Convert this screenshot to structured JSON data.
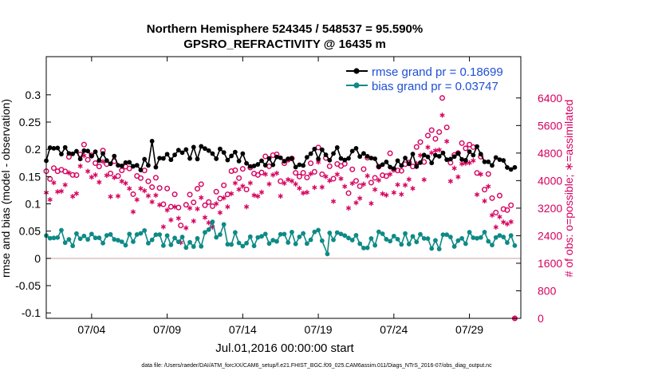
{
  "chart_data": {
    "type": "line",
    "title_line1": "Northern Hemisphere 524345 / 548537 = 95.590%",
    "title_line2": "GPSRO_REFRACTIVITY @ 16435 m",
    "xlabel": "Jul.01,2016 00:00:00 start",
    "ylabel_left": "rmse and bias (model - observation)",
    "ylabel_right": "# of obs: o=possible; ∗=assimilated",
    "xlim_days": [
      1.0,
      32.4
    ],
    "ylim_left": [
      -0.11,
      0.37
    ],
    "ylim_right": [
      0,
      7600
    ],
    "xticks": [
      {
        "day": 4,
        "label": "07/04"
      },
      {
        "day": 9,
        "label": "07/09"
      },
      {
        "day": 14,
        "label": "07/14"
      },
      {
        "day": 19,
        "label": "07/19"
      },
      {
        "day": 24,
        "label": "07/24"
      },
      {
        "day": 29,
        "label": "07/29"
      }
    ],
    "yticks_left": [
      {
        "value": 0.3,
        "label": "0.3"
      },
      {
        "value": 0.25,
        "label": "0.25"
      },
      {
        "value": 0.2,
        "label": "0.2"
      },
      {
        "value": 0.15,
        "label": "0.15"
      },
      {
        "value": 0.1,
        "label": "0.1"
      },
      {
        "value": 0.05,
        "label": "0.05"
      },
      {
        "value": 0,
        "label": "0"
      },
      {
        "value": -0.05,
        "label": "-0.05"
      },
      {
        "value": -0.1,
        "label": "-0.1"
      }
    ],
    "yticks_right": [
      {
        "value": 0,
        "label": "0"
      },
      {
        "value": 800,
        "label": "800"
      },
      {
        "value": 1600,
        "label": "1600"
      },
      {
        "value": 2400,
        "label": "2400"
      },
      {
        "value": 3200,
        "label": "3200"
      },
      {
        "value": 4000,
        "label": "4000"
      },
      {
        "value": 4800,
        "label": "4800"
      },
      {
        "value": 5600,
        "label": "5600"
      },
      {
        "value": 6400,
        "label": "6400"
      }
    ],
    "legend": [
      {
        "label": "rmse grand pr = 0.18699",
        "color": "#000000"
      },
      {
        "label": "bias grand pr = 0.03747",
        "color": "#0e8a86"
      }
    ],
    "colors": {
      "rmse": "#000000",
      "bias": "#0e8a86",
      "obs": "#d6005f",
      "zero_line": "#c9a0a0"
    },
    "key_points": [
      {
        "series": "rmse",
        "day": 8.0,
        "value": 0.215
      },
      {
        "series": "bias",
        "day": 12.0,
        "value": 0.067
      },
      {
        "series": "bias",
        "day": 19.6,
        "value": 0.008
      },
      {
        "series": "possible",
        "day": 27.2,
        "value": 6400
      },
      {
        "series": "possible",
        "day": 9.9,
        "value": 2700
      },
      {
        "series": "possible",
        "day": 32.0,
        "value": 0
      }
    ],
    "footnote": "data file: /Users/raeder/DAI/ATM_forcXX/CAM6_setup/f.e21.FHIST_BGC.f09_025.CAM6assim.011/Diags_NTrS_2016-07/obs_diag_output.nc"
  }
}
